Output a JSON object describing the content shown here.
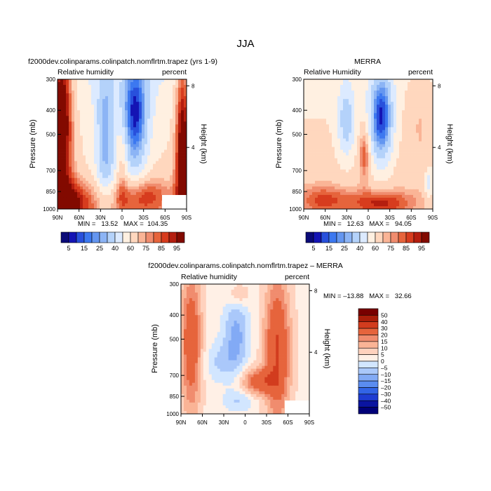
{
  "page_title": "JJA",
  "chart_data": [
    {
      "type": "heatmap",
      "title": "f2000dev.colinparams.colinpatch.nomflrtm.trapez (yrs 1-9)",
      "left_label": "Relative humidity",
      "right_label": "percent",
      "ylabel": "Pressure (mb)",
      "ylabel_right": "Height (km)",
      "x_ticks": [
        "90N",
        "60N",
        "30N",
        "0",
        "30S",
        "60S",
        "90S"
      ],
      "y_ticks": [
        "300",
        "400",
        "500",
        "700",
        "850",
        "1000"
      ],
      "y_ticks_right": [
        "8",
        "4"
      ],
      "min_max_text": "MIN =   13.52   MAX =  104.35",
      "colorbar_orientation": "horizontal",
      "colorbar_labels": [
        "5",
        "15",
        "25",
        "40",
        "60",
        "75",
        "85",
        "95"
      ]
    },
    {
      "type": "heatmap",
      "title": "MERRA",
      "left_label": "Relative Humidity",
      "right_label": "percent",
      "ylabel": "Pressure (mb)",
      "ylabel_right": "Height (km)",
      "x_ticks": [
        "90N",
        "60N",
        "30N",
        "0",
        "30S",
        "60S",
        "90S"
      ],
      "y_ticks": [
        "300",
        "400",
        "500",
        "700",
        "850",
        "1000"
      ],
      "y_ticks_right": [
        "8",
        "4"
      ],
      "min_max_text": "MIN =   12.63   MAX =   94.05",
      "colorbar_orientation": "horizontal",
      "colorbar_labels": [
        "5",
        "15",
        "25",
        "40",
        "60",
        "75",
        "85",
        "95"
      ]
    },
    {
      "type": "heatmap",
      "title": "f2000dev.colinparams.colinpatch.nomflrtm.trapez – MERRA",
      "left_label": "Relative humidity",
      "right_label": "percent",
      "ylabel": "Pressure (mb)",
      "ylabel_right": "Height (km)",
      "x_ticks": [
        "90N",
        "60N",
        "30N",
        "0",
        "30S",
        "60S",
        "90S"
      ],
      "y_ticks": [
        "300",
        "400",
        "500",
        "700",
        "850",
        "1000"
      ],
      "y_ticks_right": [
        "8",
        "4"
      ],
      "min_max_text": "MIN = –13.88   MAX =   32.66",
      "colorbar_orientation": "vertical",
      "colorbar_labels": [
        "50",
        "40",
        "30",
        "20",
        "15",
        "10",
        "5",
        "0",
        "–5",
        "–10",
        "–15",
        "–20",
        "–30",
        "–40",
        "–50"
      ]
    }
  ],
  "colors": {
    "abs_scale": [
      "#0a0a78",
      "#1414b4",
      "#2850dc",
      "#3c78f0",
      "#6496f0",
      "#8cb4f5",
      "#b4d2fa",
      "#dceaff",
      "#fff0e1",
      "#ffd7be",
      "#fab496",
      "#f08c6e",
      "#e6643c",
      "#d73c1e",
      "#b41e0f",
      "#820a00"
    ],
    "diff_scale": [
      "#000078",
      "#0a14a0",
      "#1e3cd2",
      "#3264e6",
      "#5a8cf0",
      "#82aaf5",
      "#aac8fa",
      "#d2e6ff",
      "#fff0e6",
      "#ffd2be",
      "#fab496",
      "#f08c6e",
      "#e6643c",
      "#d23c1e",
      "#aa1e0a",
      "#780000"
    ]
  }
}
